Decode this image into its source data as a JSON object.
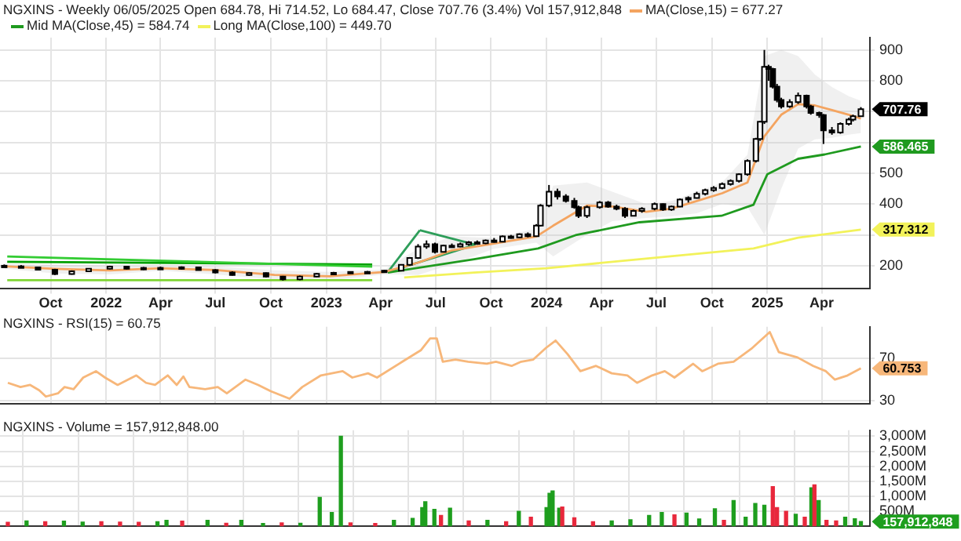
{
  "chart_data": [
    {
      "type": "candlestick",
      "title": "NGXINS - Weekly 06/05/2025 Open 684.78, Hi 714.52, Lo 684.47, Close 707.76 (3.4%) Vol 157,912,848",
      "legend": "top left",
      "marker": "none",
      "grid": true,
      "x": [
        "2021-07-16",
        "2021-08-13",
        "2021-09-10",
        "2021-10-08",
        "2021-11-05",
        "2021-12-03",
        "2022-01-07",
        "2022-02-04",
        "2022-03-04",
        "2022-04-01",
        "2022-05-06",
        "2022-06-03",
        "2022-07-01",
        "2022-07-29",
        "2022-08-26",
        "2022-09-23",
        "2022-10-21",
        "2022-11-18",
        "2022-12-16",
        "2023-01-13",
        "2023-02-10",
        "2023-03-10",
        "2023-04-07",
        "2023-05-05",
        "2023-05-19",
        "2023-06-02",
        "2023-06-16",
        "2023-06-30",
        "2023-07-14",
        "2023-07-28",
        "2023-08-11",
        "2023-08-25",
        "2023-09-08",
        "2023-09-22",
        "2023-10-06",
        "2023-10-20",
        "2023-11-03",
        "2023-11-17",
        "2023-12-01",
        "2023-12-15",
        "2023-12-22",
        "2024-01-05",
        "2024-01-19",
        "2024-02-02",
        "2024-02-16",
        "2024-02-23",
        "2024-03-08",
        "2024-03-29",
        "2024-04-12",
        "2024-04-26",
        "2024-05-10",
        "2024-05-24",
        "2024-06-07",
        "2024-06-28",
        "2024-07-12",
        "2024-07-26",
        "2024-08-09",
        "2024-08-23",
        "2024-09-06",
        "2024-09-20",
        "2024-10-04",
        "2024-10-18",
        "2024-11-01",
        "2024-11-15",
        "2024-11-29",
        "2024-12-13",
        "2024-12-20",
        "2024-12-27",
        "2025-01-03",
        "2025-01-10",
        "2025-01-17",
        "2025-01-24",
        "2025-02-07",
        "2025-02-21",
        "2025-03-07",
        "2025-03-14",
        "2025-03-28",
        "2025-04-04",
        "2025-04-18",
        "2025-05-02",
        "2025-05-16",
        "2025-05-23",
        "2025-06-05"
      ],
      "ohlc": [
        [
          200,
          204,
          196,
          198
        ],
        [
          198,
          202,
          193,
          195
        ],
        [
          195,
          197,
          185,
          187
        ],
        [
          187,
          190,
          170,
          173
        ],
        [
          173,
          185,
          171,
          182
        ],
        [
          182,
          192,
          180,
          190
        ],
        [
          190,
          200,
          188,
          197
        ],
        [
          197,
          199,
          188,
          190
        ],
        [
          190,
          196,
          186,
          193
        ],
        [
          193,
          197,
          188,
          191
        ],
        [
          191,
          198,
          187,
          195
        ],
        [
          195,
          197,
          185,
          186
        ],
        [
          186,
          189,
          175,
          178
        ],
        [
          178,
          182,
          168,
          170
        ],
        [
          170,
          178,
          168,
          176
        ],
        [
          176,
          178,
          162,
          165
        ],
        [
          165,
          167,
          152,
          156
        ],
        [
          156,
          168,
          153,
          165
        ],
        [
          165,
          176,
          163,
          174
        ],
        [
          174,
          180,
          171,
          177
        ],
        [
          177,
          182,
          174,
          180
        ],
        [
          180,
          183,
          176,
          179
        ],
        [
          179,
          186,
          177,
          184
        ],
        [
          184,
          205,
          182,
          203
        ],
        [
          203,
          228,
          200,
          225
        ],
        [
          225,
          270,
          222,
          262
        ],
        [
          262,
          282,
          255,
          270
        ],
        [
          270,
          275,
          240,
          245
        ],
        [
          245,
          268,
          243,
          265
        ],
        [
          265,
          272,
          258,
          262
        ],
        [
          262,
          275,
          260,
          270
        ],
        [
          270,
          280,
          265,
          276
        ],
        [
          276,
          282,
          268,
          273
        ],
        [
          273,
          285,
          270,
          282
        ],
        [
          282,
          290,
          275,
          278
        ],
        [
          278,
          298,
          276,
          295
        ],
        [
          295,
          300,
          288,
          292
        ],
        [
          292,
          305,
          290,
          302
        ],
        [
          302,
          308,
          292,
          296
        ],
        [
          296,
          335,
          294,
          330
        ],
        [
          330,
          400,
          328,
          395
        ],
        [
          395,
          462,
          390,
          440
        ],
        [
          440,
          450,
          415,
          425
        ],
        [
          425,
          432,
          405,
          410
        ],
        [
          410,
          420,
          385,
          390
        ],
        [
          390,
          395,
          355,
          362
        ],
        [
          362,
          395,
          355,
          390
        ],
        [
          390,
          410,
          385,
          405
        ],
        [
          405,
          410,
          388,
          392
        ],
        [
          392,
          398,
          380,
          385
        ],
        [
          385,
          390,
          355,
          362
        ],
        [
          362,
          382,
          360,
          378
        ],
        [
          378,
          390,
          372,
          385
        ],
        [
          385,
          405,
          380,
          400
        ],
        [
          400,
          402,
          378,
          382
        ],
        [
          382,
          395,
          378,
          392
        ],
        [
          392,
          418,
          390,
          415
        ],
        [
          415,
          425,
          405,
          420
        ],
        [
          420,
          440,
          418,
          433
        ],
        [
          433,
          450,
          428,
          445
        ],
        [
          445,
          458,
          440,
          452
        ],
        [
          452,
          470,
          448,
          465
        ],
        [
          465,
          480,
          460,
          475
        ],
        [
          475,
          500,
          470,
          497
        ],
        [
          497,
          545,
          492,
          540
        ],
        [
          540,
          615,
          535,
          611
        ],
        [
          611,
          670,
          605,
          667
        ],
        [
          667,
          900,
          660,
          845
        ],
        [
          845,
          852,
          800,
          838
        ],
        [
          838,
          842,
          775,
          781
        ],
        [
          781,
          790,
          730,
          738
        ],
        [
          738,
          745,
          710,
          717
        ],
        [
          717,
          740,
          712,
          731
        ],
        [
          731,
          762,
          725,
          752
        ],
        [
          752,
          755,
          710,
          717
        ],
        [
          717,
          722,
          690,
          696
        ],
        [
          696,
          700,
          680,
          689
        ],
        [
          689,
          692,
          595,
          639
        ],
        [
          639,
          650,
          625,
          632
        ],
        [
          632,
          665,
          628,
          660
        ],
        [
          660,
          680,
          655,
          674
        ],
        [
          674,
          690,
          668,
          685
        ],
        [
          684.78,
          714.52,
          684.47,
          707.76
        ]
      ],
      "series": [
        {
          "type": "line",
          "name": "MA(Close,15) = 677.27",
          "color": "#f4a460",
          "x": [
            "2021-07-16",
            "2021-10-08",
            "2022-01-07",
            "2022-04-01",
            "2022-07-01",
            "2022-10-07",
            "2023-01-06",
            "2023-04-07",
            "2023-06-02",
            "2023-07-28",
            "2023-10-06",
            "2023-12-15",
            "2024-01-12",
            "2024-03-08",
            "2024-04-19",
            "2024-06-14",
            "2024-07-26",
            "2024-09-06",
            "2024-10-18",
            "2024-11-29",
            "2024-12-27",
            "2025-01-24",
            "2025-02-21",
            "2025-03-21",
            "2025-04-18",
            "2025-05-16",
            "2025-06-05"
          ],
          "values": [
            198,
            190,
            185,
            192,
            186,
            170,
            166,
            180,
            210,
            250,
            272,
            295,
            330,
            395,
            392,
            375,
            385,
            410,
            435,
            470,
            620,
            690,
            724,
            720,
            705,
            690,
            677.27
          ],
          "lower": [
            190,
            175,
            172,
            184,
            172,
            155,
            152,
            172,
            170,
            205,
            255,
            275,
            230,
            300,
            345,
            355,
            360,
            370,
            400,
            390,
            300,
            450,
            580,
            610,
            615,
            625,
            630
          ],
          "upper": [
            206,
            205,
            200,
            200,
            198,
            185,
            180,
            188,
            255,
            295,
            290,
            320,
            460,
            470,
            440,
            400,
            410,
            440,
            470,
            560,
            880,
            900,
            880,
            820,
            780,
            750,
            735
          ]
        },
        {
          "type": "line",
          "name": "Mid MA(Close,45) = 584.74",
          "color": "#1f9a1f",
          "x": [
            "2023-04-13",
            "2023-09-03",
            "2023-12-18",
            "2024-02-18",
            "2024-06-03",
            "2024-10-17",
            "2024-12-09",
            "2025-01-01",
            "2025-02-21",
            "2025-04-06",
            "2025-06-05"
          ],
          "values": [
            178,
            221,
            256,
            299,
            341,
            362,
            398,
            497,
            547,
            561,
            586.465
          ]
        },
        {
          "type": "line",
          "name": "Long MA(Close,100) = 449.70",
          "color": "#f2f25a",
          "x": [
            "2023-05-10",
            "2023-09-03",
            "2024-01-01",
            "2024-06-03",
            "2024-12-09",
            "2025-02-21",
            "2025-06-05"
          ],
          "values": [
            162,
            178,
            192,
            221,
            256,
            291,
            317.312
          ]
        },
        {
          "type": "line",
          "color": "#33cc33",
          "x": [
            "2021-07-21",
            "2023-03-18"
          ],
          "values": [
            230,
            197
          ]
        },
        {
          "type": "line",
          "color": "#00a000",
          "x": [
            "2021-07-21",
            "2023-03-18"
          ],
          "values": [
            213,
            204
          ]
        },
        {
          "type": "line",
          "color": "#7fd633",
          "x": [
            "2021-07-21",
            "2023-03-18"
          ],
          "values": [
            153,
            153
          ]
        },
        {
          "type": "line",
          "color": "#2e9e5a",
          "x": [
            "2023-04-13",
            "2023-06-05"
          ],
          "values": [
            180,
            315
          ]
        },
        {
          "type": "line",
          "color": "#2e9e5a",
          "x": [
            "2023-06-05",
            "2023-09-05"
          ],
          "values": [
            315,
            268
          ]
        },
        {
          "type": "line",
          "color": "#2e9e5a",
          "x": [
            "2023-04-13",
            "2023-09-05"
          ],
          "values": [
            180,
            268
          ]
        }
      ],
      "xlim": [
        "2021-07-09",
        "2025-06-20"
      ],
      "xticks": [
        {
          "value": "2021-10-01",
          "label": "Oct"
        },
        {
          "value": "2022-01-01",
          "label": "2022"
        },
        {
          "value": "2022-04-01",
          "label": "Apr"
        },
        {
          "value": "2022-07-01",
          "label": "Jul"
        },
        {
          "value": "2022-10-01",
          "label": "Oct"
        },
        {
          "value": "2023-01-01",
          "label": "2023"
        },
        {
          "value": "2023-04-01",
          "label": "Apr"
        },
        {
          "value": "2023-07-01",
          "label": "Jul"
        },
        {
          "value": "2023-10-01",
          "label": "Oct"
        },
        {
          "value": "2024-01-01",
          "label": "2024"
        },
        {
          "value": "2024-04-01",
          "label": "Apr"
        },
        {
          "value": "2024-07-01",
          "label": "Jul"
        },
        {
          "value": "2024-10-01",
          "label": "Oct"
        },
        {
          "value": "2025-01-01",
          "label": "2025"
        },
        {
          "value": "2025-04-01",
          "label": "Apr"
        }
      ],
      "ylim": [
        125,
        940
      ],
      "yticks": [
        200,
        {
          "value": 300,
          "label": null
        },
        400,
        500,
        {
          "value": 600,
          "label": null
        },
        {
          "value": 700,
          "label": null
        },
        800,
        900
      ],
      "annotations": [
        {
          "text": "707.76",
          "x": "2025-06-05",
          "y": 707.76
        },
        {
          "text": "586.465",
          "x": "2025-06-05",
          "y": 586.465
        },
        {
          "text": "317.312",
          "x": "2025-06-05",
          "y": 317.312
        }
      ]
    },
    {
      "type": "line",
      "title": "NGXINS - RSI(15) = 60.75",
      "marker": "none",
      "grid": true,
      "tick_labels": "y",
      "series": [
        {
          "type": "line",
          "color": "#f7b77a",
          "x": [
            "2021-07-22",
            "2021-08-12",
            "2021-08-28",
            "2021-09-12",
            "2021-09-23",
            "2021-10-13",
            "2021-10-24",
            "2021-11-08",
            "2021-11-24",
            "2021-12-15",
            "2021-12-30",
            "2022-01-20",
            "2022-02-20",
            "2022-03-08",
            "2022-03-23",
            "2022-04-13",
            "2022-04-28",
            "2022-05-09",
            "2022-05-19",
            "2022-06-14",
            "2022-07-05",
            "2022-07-20",
            "2022-08-20",
            "2022-09-10",
            "2022-10-01",
            "2022-11-01",
            "2022-11-22",
            "2022-12-23",
            "2023-01-28",
            "2023-02-13",
            "2023-03-11",
            "2023-03-26",
            "2023-05-07",
            "2023-06-07",
            "2023-06-22",
            "2023-07-03",
            "2023-07-13",
            "2023-08-03",
            "2023-08-24",
            "2023-09-24",
            "2023-10-09",
            "2023-11-04",
            "2023-11-20",
            "2023-12-10",
            "2023-12-31",
            "2024-01-16",
            "2024-02-05",
            "2024-02-26",
            "2024-03-23",
            "2024-04-18",
            "2024-05-14",
            "2024-05-30",
            "2024-06-24",
            "2024-07-15",
            "2024-07-31",
            "2024-08-31",
            "2024-09-15",
            "2024-10-11",
            "2024-11-06",
            "2024-12-07",
            "2025-01-05",
            "2025-01-20",
            "2025-02-20",
            "2025-03-18",
            "2025-04-08",
            "2025-04-23",
            "2025-05-14",
            "2025-06-05"
          ],
          "values": [
            47,
            43,
            45,
            40,
            34,
            37,
            43,
            41,
            52,
            58,
            52,
            45,
            54,
            47,
            45,
            54,
            45,
            53,
            43,
            41,
            43,
            37,
            50,
            45,
            39,
            32,
            43,
            54,
            58,
            52,
            56,
            52,
            67,
            78,
            89,
            89,
            67,
            69,
            67,
            65,
            67,
            63,
            67,
            69,
            80,
            87,
            74,
            58,
            63,
            56,
            54,
            47,
            54,
            58,
            52,
            65,
            58,
            65,
            67,
            80,
            95,
            76,
            71,
            63,
            58,
            50,
            54,
            60.753
          ]
        }
      ],
      "xlim": [
        "2021-07-09",
        "2025-06-20"
      ],
      "xticks": [
        {
          "value": "2021-10-01",
          "label": null
        },
        {
          "value": "2022-01-01",
          "label": null
        },
        {
          "value": "2022-04-01",
          "label": null
        },
        {
          "value": "2022-07-01",
          "label": null
        },
        {
          "value": "2022-10-01",
          "label": null
        },
        {
          "value": "2023-01-01",
          "label": null
        },
        {
          "value": "2023-04-01",
          "label": null
        },
        {
          "value": "2023-07-01",
          "label": null
        },
        {
          "value": "2023-10-01",
          "label": null
        },
        {
          "value": "2024-01-01",
          "label": null
        },
        {
          "value": "2024-04-01",
          "label": null
        },
        {
          "value": "2024-07-01",
          "label": null
        },
        {
          "value": "2024-10-01",
          "label": null
        },
        {
          "value": "2025-01-01",
          "label": null
        },
        {
          "value": "2025-04-01",
          "label": null
        }
      ],
      "ylim": [
        27,
        100
      ],
      "yticks": [
        30,
        70
      ],
      "annotations": [
        {
          "text": "60.753",
          "x": "2025-06-05",
          "y": 60.753
        }
      ]
    },
    {
      "type": "bar",
      "title": "NGXINS - Volume = 157,912,848.00",
      "grid": true,
      "tick_labels": "y",
      "x": [
        "2021-07-22",
        "2021-08-22",
        "2021-09-22",
        "2021-10-23",
        "2021-11-23",
        "2021-12-24",
        "2022-01-24",
        "2022-02-24",
        "2022-03-27",
        "2022-04-11",
        "2022-05-07",
        "2022-06-18",
        "2022-07-19",
        "2022-08-13",
        "2022-09-18",
        "2022-10-19",
        "2022-11-19",
        "2022-12-21",
        "2023-01-10",
        "2023-01-25",
        "2023-02-10",
        "2023-03-23",
        "2023-04-23",
        "2023-05-24",
        "2023-06-09",
        "2023-06-14",
        "2023-06-29",
        "2023-07-10",
        "2023-07-25",
        "2023-08-25",
        "2023-09-25",
        "2023-10-26",
        "2023-11-16",
        "2023-12-06",
        "2024-01-01",
        "2024-01-06",
        "2024-01-11",
        "2024-01-22",
        "2024-01-27",
        "2024-02-16",
        "2024-03-18",
        "2024-04-18",
        "2024-05-19",
        "2024-06-19",
        "2024-07-10",
        "2024-07-31",
        "2024-08-20",
        "2024-09-10",
        "2024-10-06",
        "2024-10-21",
        "2024-11-06",
        "2024-11-26",
        "2024-12-12",
        "2024-12-27",
        "2025-01-10",
        "2025-01-17",
        "2025-02-01",
        "2025-02-17",
        "2025-03-04",
        "2025-03-15",
        "2025-03-20",
        "2025-03-27",
        "2025-04-09",
        "2025-04-25",
        "2025-05-10",
        "2025-05-26",
        "2025-06-05"
      ],
      "values": [
        130,
        180,
        150,
        170,
        140,
        150,
        140,
        130,
        150,
        200,
        170,
        200,
        100,
        200,
        90,
        110,
        100,
        960,
        460,
        3000,
        110,
        90,
        200,
        260,
        620,
        820,
        560,
        360,
        600,
        180,
        200,
        150,
        500,
        300,
        620,
        1100,
        1180,
        600,
        640,
        280,
        150,
        180,
        220,
        360,
        460,
        380,
        440,
        240,
        580,
        200,
        860,
        300,
        760,
        700,
        1320,
        620,
        500,
        400,
        300,
        1280,
        1380,
        860,
        200,
        180,
        300,
        250,
        157.912848
      ],
      "colors": [
        "#e8283c",
        "#1e9e1e",
        "#e8283c",
        "#1e9e1e",
        "#1e9e1e",
        "#e8283c",
        "#e8283c",
        "#e8283c",
        "#1e9e1e",
        "#1e9e1e",
        "#e8283c",
        "#1e9e1e",
        "#e8283c",
        "#1e9e1e",
        "#1e9e1e",
        "#e8283c",
        "#1e9e1e",
        "#1e9e1e",
        "#1e9e1e",
        "#1e9e1e",
        "#e8283c",
        "#e8283c",
        "#1e9e1e",
        "#1e9e1e",
        "#1e9e1e",
        "#1e9e1e",
        "#1e9e1e",
        "#e8283c",
        "#1e9e1e",
        "#e8283c",
        "#1e9e1e",
        "#e8283c",
        "#1e9e1e",
        "#e8283c",
        "#1e9e1e",
        "#1e9e1e",
        "#1e9e1e",
        "#1e9e1e",
        "#e8283c",
        "#e8283c",
        "#e8283c",
        "#1e9e1e",
        "#1e9e1e",
        "#1e9e1e",
        "#1e9e1e",
        "#e8283c",
        "#1e9e1e",
        "#1e9e1e",
        "#1e9e1e",
        "#e8283c",
        "#1e9e1e",
        "#1e9e1e",
        "#1e9e1e",
        "#1e9e1e",
        "#e8283c",
        "#e8283c",
        "#e8283c",
        "#1e9e1e",
        "#e8283c",
        "#1e9e1e",
        "#e8283c",
        "#1e9e1e",
        "#e8283c",
        "#e8283c",
        "#1e9e1e",
        "#1e9e1e",
        "#1e9e1e"
      ],
      "xlim": [
        "2021-07-09",
        "2025-06-20"
      ],
      "xticks": [
        {
          "value": "2021-10-01",
          "label": null
        },
        {
          "value": "2022-01-01",
          "label": null
        },
        {
          "value": "2022-04-01",
          "label": null
        },
        {
          "value": "2022-07-01",
          "label": null
        },
        {
          "value": "2022-10-01",
          "label": null
        },
        {
          "value": "2023-01-01",
          "label": null
        },
        {
          "value": "2023-04-01",
          "label": null
        },
        {
          "value": "2023-07-01",
          "label": null
        },
        {
          "value": "2023-10-01",
          "label": null
        },
        {
          "value": "2024-01-01",
          "label": null
        },
        {
          "value": "2024-04-01",
          "label": null
        },
        {
          "value": "2024-07-01",
          "label": null
        },
        {
          "value": "2024-10-01",
          "label": null
        },
        {
          "value": "2025-01-01",
          "label": null
        },
        {
          "value": "2025-04-01",
          "label": null
        }
      ],
      "ylim": [
        0,
        3200
      ],
      "yticks": [
        {
          "value": 500,
          "label": "500M"
        },
        {
          "value": 1000,
          "label": "1,000M"
        },
        {
          "value": 1500,
          "label": "1,500M"
        },
        {
          "value": 2000,
          "label": "2,000M"
        },
        {
          "value": 2500,
          "label": "2,500M"
        },
        {
          "value": 3000,
          "label": "3,000M"
        }
      ],
      "annotations": [
        {
          "text": "157,912,848",
          "x": "2025-06-05",
          "y": 157.912848
        }
      ]
    }
  ]
}
